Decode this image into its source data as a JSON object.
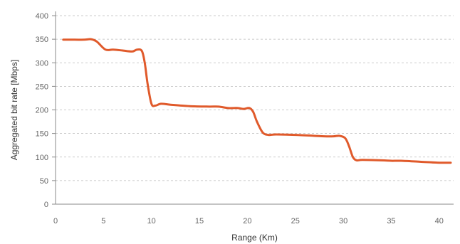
{
  "chart_data": {
    "type": "line",
    "title": "",
    "xlabel": "Range (Km)",
    "ylabel": "Aggregated bit rate [Mbps]",
    "xlim": [
      0,
      41.5
    ],
    "ylim": [
      0,
      400
    ],
    "xticks": [
      0,
      5,
      10,
      15,
      20,
      25,
      30,
      35,
      40
    ],
    "yticks": [
      0,
      50,
      100,
      150,
      200,
      250,
      300,
      350,
      400
    ],
    "grid": "horizontal dashed",
    "legend": "none",
    "series": [
      {
        "color": "#e05a2b",
        "x": [
          0.8,
          2.0,
          3.0,
          3.7,
          4.3,
          5.2,
          6.0,
          7.0,
          8.0,
          8.5,
          9.0,
          9.3,
          9.6,
          10.0,
          10.4,
          11.0,
          12.0,
          14.0,
          16.0,
          17.0,
          18.0,
          19.0,
          19.6,
          20.2,
          20.6,
          21.0,
          21.6,
          22.2,
          23.0,
          25.0,
          27.0,
          28.0,
          29.0,
          29.6,
          30.2,
          30.6,
          31.0,
          31.4,
          32.0,
          34.0,
          35.0,
          36.0,
          38.0,
          40.0,
          41.2
        ],
        "y": [
          349,
          349,
          349,
          350,
          345,
          328,
          328,
          326,
          324,
          328,
          325,
          300,
          255,
          213,
          209,
          213,
          211,
          208,
          207,
          207,
          204,
          204,
          202,
          204,
          196,
          175,
          152,
          147,
          148,
          147,
          145,
          144,
          144,
          145,
          140,
          123,
          100,
          93,
          94,
          93,
          92,
          92,
          90,
          88,
          88
        ]
      }
    ]
  }
}
